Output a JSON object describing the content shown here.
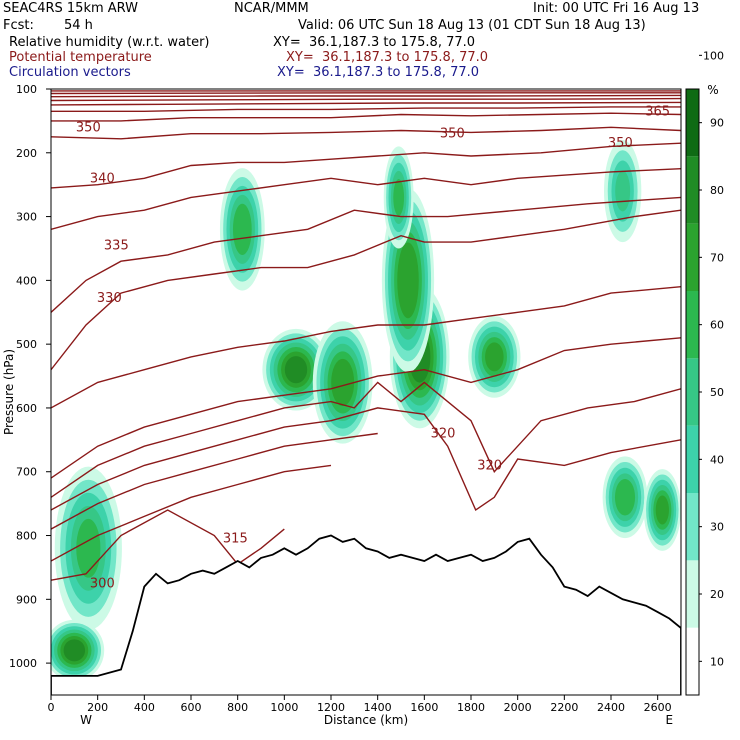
{
  "header": {
    "model": "SEAC4RS 15km ARW",
    "org": "NCAR/MMM",
    "init": "Init: 00 UTC Fri 16 Aug 13",
    "fcst_label": "Fcst:",
    "fcst_value": "54 h",
    "valid": "Valid: 06 UTC Sun 18 Aug 13 (01 CDT Sun 18 Aug 13)"
  },
  "fields": [
    {
      "name": "Relative humidity (w.r.t. water)",
      "xy": "XY=  36.1,187.3 to 175.8, 77.0",
      "color": "#000000"
    },
    {
      "name": "Potential temperature",
      "xy": "XY=  36.1,187.3 to 175.8, 77.0",
      "color": "#8b1a1a"
    },
    {
      "name": "Circulation vectors",
      "xy": "XY=  36.1,187.3 to 175.8, 77.0",
      "color": "#1a1a8c"
    }
  ],
  "chart_data": {
    "type": "heatmap",
    "xlabel": "Distance (km)",
    "ylabel": "Pressure (hPa)",
    "x_ticks": [
      0,
      200,
      400,
      600,
      800,
      1000,
      1200,
      1400,
      1600,
      1800,
      2000,
      2200,
      2400,
      2600
    ],
    "x_tick_labels": [
      "0",
      "200",
      "400",
      "600",
      "800",
      "1000",
      "1200",
      "1400",
      "1600",
      "1800",
      "2000",
      "2200",
      "2400",
      "2600"
    ],
    "xlim": [
      0,
      2700
    ],
    "y_ticks": [
      100,
      200,
      300,
      400,
      500,
      600,
      700,
      800,
      900,
      1000
    ],
    "y_tick_labels": [
      "100",
      "200",
      "300",
      "400",
      "500",
      "600",
      "700",
      "800",
      "900",
      "1000"
    ],
    "ylim": [
      1050,
      100
    ],
    "endpoint_labels": {
      "left": "W",
      "right": "E"
    },
    "colorbar": {
      "unit": "%",
      "ticks": [
        10,
        20,
        30,
        40,
        50,
        60,
        70,
        80,
        90,
        100
      ],
      "levels": [
        0,
        30,
        40,
        50,
        60,
        70,
        80,
        90,
        100,
        110
      ],
      "colors": [
        "#ffffff",
        "#ccfae6",
        "#72e6c8",
        "#3dd2aa",
        "#36c786",
        "#2cb84f",
        "#2ba32f",
        "#208c25",
        "#0f6b14"
      ]
    },
    "theta_contour_labels": [
      {
        "text": "365",
        "x": 2600,
        "p": 135
      },
      {
        "text": "350",
        "x": 160,
        "p": 160
      },
      {
        "text": "350",
        "x": 1720,
        "p": 170
      },
      {
        "text": "350",
        "x": 2440,
        "p": 185
      },
      {
        "text": "340",
        "x": 220,
        "p": 240
      },
      {
        "text": "335",
        "x": 280,
        "p": 345
      },
      {
        "text": "330",
        "x": 250,
        "p": 428
      },
      {
        "text": "320",
        "x": 1680,
        "p": 640
      },
      {
        "text": "320",
        "x": 1880,
        "p": 690
      },
      {
        "text": "315",
        "x": 790,
        "p": 805
      },
      {
        "text": "300",
        "x": 220,
        "p": 875
      }
    ],
    "theta_lines": [
      [
        [
          0,
          870
        ],
        [
          150,
          860
        ],
        [
          250,
          820
        ],
        [
          300,
          800
        ],
        [
          500,
          760
        ],
        [
          700,
          800
        ],
        [
          800,
          845
        ],
        [
          900,
          820
        ],
        [
          1000,
          790
        ]
      ],
      [
        [
          0,
          840
        ],
        [
          200,
          800
        ],
        [
          400,
          770
        ],
        [
          600,
          740
        ],
        [
          800,
          720
        ],
        [
          1000,
          700
        ],
        [
          1200,
          690
        ]
      ],
      [
        [
          0,
          790
        ],
        [
          200,
          750
        ],
        [
          400,
          720
        ],
        [
          600,
          700
        ],
        [
          800,
          680
        ],
        [
          1000,
          660
        ],
        [
          1200,
          650
        ],
        [
          1400,
          640
        ]
      ],
      [
        [
          0,
          760
        ],
        [
          200,
          720
        ],
        [
          400,
          690
        ],
        [
          600,
          670
        ],
        [
          800,
          650
        ],
        [
          1000,
          630
        ],
        [
          1200,
          620
        ],
        [
          1400,
          600
        ],
        [
          1600,
          610
        ],
        [
          1700,
          660
        ],
        [
          1820,
          760
        ],
        [
          1900,
          740
        ],
        [
          2000,
          680
        ],
        [
          2200,
          690
        ],
        [
          2400,
          670
        ],
        [
          2700,
          650
        ]
      ],
      [
        [
          0,
          740
        ],
        [
          200,
          690
        ],
        [
          400,
          660
        ],
        [
          600,
          640
        ],
        [
          800,
          620
        ],
        [
          1000,
          600
        ],
        [
          1200,
          590
        ],
        [
          1300,
          600
        ],
        [
          1400,
          560
        ],
        [
          1500,
          590
        ],
        [
          1600,
          560
        ],
        [
          1800,
          620
        ],
        [
          1900,
          700
        ],
        [
          2100,
          620
        ],
        [
          2300,
          600
        ],
        [
          2500,
          590
        ],
        [
          2700,
          570
        ]
      ],
      [
        [
          0,
          710
        ],
        [
          200,
          660
        ],
        [
          400,
          630
        ],
        [
          600,
          610
        ],
        [
          800,
          590
        ],
        [
          1000,
          580
        ],
        [
          1200,
          570
        ],
        [
          1400,
          550
        ],
        [
          1600,
          540
        ],
        [
          1800,
          560
        ],
        [
          2000,
          540
        ],
        [
          2200,
          510
        ],
        [
          2400,
          500
        ],
        [
          2700,
          490
        ]
      ],
      [
        [
          0,
          600
        ],
        [
          200,
          560
        ],
        [
          400,
          540
        ],
        [
          600,
          520
        ],
        [
          800,
          505
        ],
        [
          1000,
          495
        ],
        [
          1200,
          480
        ],
        [
          1400,
          470
        ],
        [
          1600,
          470
        ],
        [
          1800,
          460
        ],
        [
          2000,
          450
        ],
        [
          2200,
          440
        ],
        [
          2400,
          420
        ],
        [
          2700,
          410
        ]
      ],
      [
        [
          0,
          540
        ],
        [
          150,
          470
        ],
        [
          300,
          420
        ],
        [
          500,
          400
        ],
        [
          700,
          390
        ],
        [
          900,
          380
        ],
        [
          1100,
          380
        ],
        [
          1300,
          360
        ],
        [
          1500,
          330
        ],
        [
          1600,
          340
        ],
        [
          1800,
          340
        ],
        [
          2000,
          330
        ],
        [
          2200,
          320
        ],
        [
          2500,
          300
        ],
        [
          2700,
          290
        ]
      ],
      [
        [
          0,
          450
        ],
        [
          150,
          400
        ],
        [
          300,
          370
        ],
        [
          500,
          360
        ],
        [
          700,
          340
        ],
        [
          900,
          330
        ],
        [
          1100,
          320
        ],
        [
          1300,
          290
        ],
        [
          1500,
          300
        ],
        [
          1700,
          300
        ],
        [
          2000,
          290
        ],
        [
          2300,
          280
        ],
        [
          2700,
          270
        ]
      ],
      [
        [
          0,
          320
        ],
        [
          200,
          300
        ],
        [
          400,
          290
        ],
        [
          600,
          270
        ],
        [
          800,
          260
        ],
        [
          1000,
          250
        ],
        [
          1200,
          240
        ],
        [
          1400,
          250
        ],
        [
          1600,
          240
        ],
        [
          1800,
          250
        ],
        [
          2000,
          240
        ],
        [
          2400,
          230
        ],
        [
          2700,
          225
        ]
      ],
      [
        [
          0,
          255
        ],
        [
          200,
          250
        ],
        [
          400,
          240
        ],
        [
          600,
          220
        ],
        [
          800,
          215
        ],
        [
          1000,
          215
        ],
        [
          1200,
          210
        ],
        [
          1400,
          205
        ],
        [
          1600,
          200
        ],
        [
          1800,
          205
        ],
        [
          2100,
          200
        ],
        [
          2400,
          190
        ],
        [
          2700,
          185
        ]
      ],
      [
        [
          0,
          175
        ],
        [
          300,
          178
        ],
        [
          600,
          170
        ],
        [
          900,
          170
        ],
        [
          1200,
          168
        ],
        [
          1500,
          165
        ],
        [
          1800,
          168
        ],
        [
          2100,
          165
        ],
        [
          2400,
          160
        ],
        [
          2700,
          165
        ]
      ],
      [
        [
          0,
          150
        ],
        [
          300,
          150
        ],
        [
          600,
          145
        ],
        [
          900,
          145
        ],
        [
          1200,
          145
        ],
        [
          1500,
          140
        ],
        [
          1800,
          142
        ],
        [
          2100,
          140
        ],
        [
          2400,
          138
        ],
        [
          2700,
          140
        ]
      ],
      [
        [
          0,
          135
        ],
        [
          400,
          135
        ],
        [
          800,
          132
        ],
        [
          1200,
          132
        ],
        [
          1600,
          130
        ],
        [
          2000,
          130
        ],
        [
          2400,
          128
        ],
        [
          2700,
          128
        ]
      ],
      [
        [
          0,
          125
        ],
        [
          500,
          124
        ],
        [
          1000,
          123
        ],
        [
          1500,
          122
        ],
        [
          2000,
          122
        ],
        [
          2700,
          121
        ]
      ],
      [
        [
          0,
          118
        ],
        [
          700,
          117
        ],
        [
          1400,
          116
        ],
        [
          2100,
          116
        ],
        [
          2700,
          115
        ]
      ],
      [
        [
          0,
          112
        ],
        [
          900,
          111
        ],
        [
          1800,
          111
        ],
        [
          2700,
          110
        ]
      ],
      [
        [
          0,
          107
        ],
        [
          1350,
          106
        ],
        [
          2700,
          106
        ]
      ],
      [
        [
          0,
          103
        ],
        [
          2700,
          103
        ]
      ]
    ],
    "terrain": [
      [
        0,
        1020
      ],
      [
        120,
        1020
      ],
      [
        200,
        1020
      ],
      [
        300,
        1010
      ],
      [
        350,
        950
      ],
      [
        400,
        880
      ],
      [
        450,
        860
      ],
      [
        500,
        875
      ],
      [
        550,
        870
      ],
      [
        600,
        860
      ],
      [
        650,
        855
      ],
      [
        700,
        860
      ],
      [
        750,
        850
      ],
      [
        800,
        840
      ],
      [
        850,
        850
      ],
      [
        900,
        835
      ],
      [
        950,
        830
      ],
      [
        1000,
        820
      ],
      [
        1050,
        830
      ],
      [
        1100,
        820
      ],
      [
        1150,
        805
      ],
      [
        1200,
        800
      ],
      [
        1250,
        810
      ],
      [
        1300,
        805
      ],
      [
        1350,
        820
      ],
      [
        1400,
        825
      ],
      [
        1450,
        835
      ],
      [
        1500,
        830
      ],
      [
        1550,
        835
      ],
      [
        1600,
        840
      ],
      [
        1650,
        830
      ],
      [
        1700,
        840
      ],
      [
        1750,
        835
      ],
      [
        1800,
        830
      ],
      [
        1850,
        840
      ],
      [
        1900,
        835
      ],
      [
        1950,
        825
      ],
      [
        2000,
        810
      ],
      [
        2050,
        805
      ],
      [
        2100,
        830
      ],
      [
        2150,
        850
      ],
      [
        2200,
        880
      ],
      [
        2250,
        885
      ],
      [
        2300,
        895
      ],
      [
        2350,
        880
      ],
      [
        2400,
        890
      ],
      [
        2450,
        900
      ],
      [
        2500,
        905
      ],
      [
        2550,
        910
      ],
      [
        2600,
        920
      ],
      [
        2650,
        930
      ],
      [
        2700,
        945
      ]
    ],
    "rh_patches": [
      {
        "x": 1050,
        "p": 540,
        "rx": 90,
        "rp": 40,
        "rh": 92
      },
      {
        "x": 1580,
        "p": 520,
        "rx": 80,
        "rp": 70,
        "rh": 95
      },
      {
        "x": 1530,
        "p": 400,
        "rx": 70,
        "rp": 90,
        "rh": 88
      },
      {
        "x": 1490,
        "p": 270,
        "rx": 40,
        "rp": 50,
        "rh": 70
      },
      {
        "x": 1250,
        "p": 560,
        "rx": 80,
        "rp": 60,
        "rh": 85
      },
      {
        "x": 1900,
        "p": 520,
        "rx": 70,
        "rp": 40,
        "rh": 82
      },
      {
        "x": 820,
        "p": 320,
        "rx": 60,
        "rp": 60,
        "rh": 75
      },
      {
        "x": 2450,
        "p": 260,
        "rx": 50,
        "rp": 50,
        "rh": 60
      },
      {
        "x": 2460,
        "p": 740,
        "rx": 60,
        "rp": 40,
        "rh": 78
      },
      {
        "x": 2620,
        "p": 760,
        "rx": 50,
        "rp": 40,
        "rh": 82
      },
      {
        "x": 160,
        "p": 820,
        "rx": 90,
        "rp": 80,
        "rh": 70
      },
      {
        "x": 100,
        "p": 980,
        "rx": 80,
        "rp": 30,
        "rh": 95
      }
    ]
  }
}
